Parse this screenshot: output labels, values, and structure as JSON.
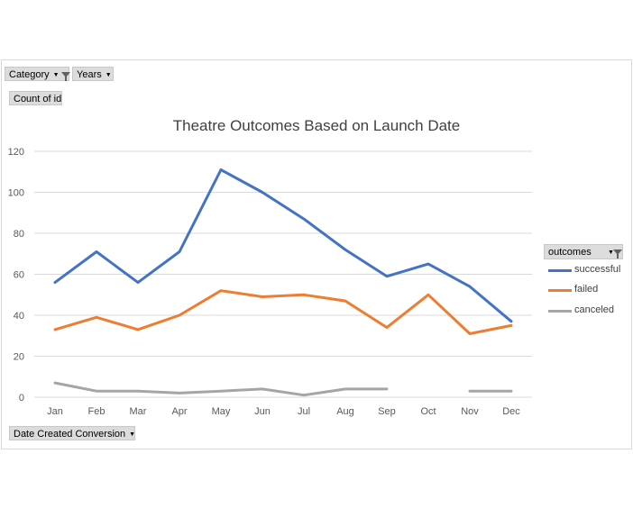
{
  "filters": {
    "category_label": "Category",
    "years_label": "Years",
    "count_label": "Count of id",
    "axis_field_label": "Date Created Conversion",
    "legend_field_label": "outcomes"
  },
  "colors": {
    "successful": "#4472c4",
    "failed": "#ed7d31",
    "canceled": "#a5a5a5",
    "grid": "#d9d9d9",
    "axis_text": "#595959"
  },
  "icons": {
    "dropdown": "triangle-down-icon",
    "filter": "funnel-filter-icon"
  },
  "chart_data": {
    "type": "line",
    "title": "Theatre Outcomes Based on Launch Date",
    "categories": [
      "Jan",
      "Feb",
      "Mar",
      "Apr",
      "May",
      "Jun",
      "Jul",
      "Aug",
      "Sep",
      "Oct",
      "Nov",
      "Dec"
    ],
    "ylim": [
      0,
      120
    ],
    "yticks": [
      0,
      20,
      40,
      60,
      80,
      100,
      120
    ],
    "grid": true,
    "legend_position": "right",
    "series": [
      {
        "name": "successful",
        "values": [
          56,
          71,
          56,
          71,
          111,
          100,
          87,
          72,
          59,
          65,
          54,
          37
        ]
      },
      {
        "name": "failed",
        "values": [
          33,
          39,
          33,
          40,
          52,
          49,
          50,
          47,
          34,
          50,
          31,
          35
        ]
      },
      {
        "name": "canceled",
        "values": [
          7,
          3,
          3,
          2,
          3,
          4,
          1,
          4,
          4,
          null,
          3,
          3
        ]
      }
    ]
  }
}
